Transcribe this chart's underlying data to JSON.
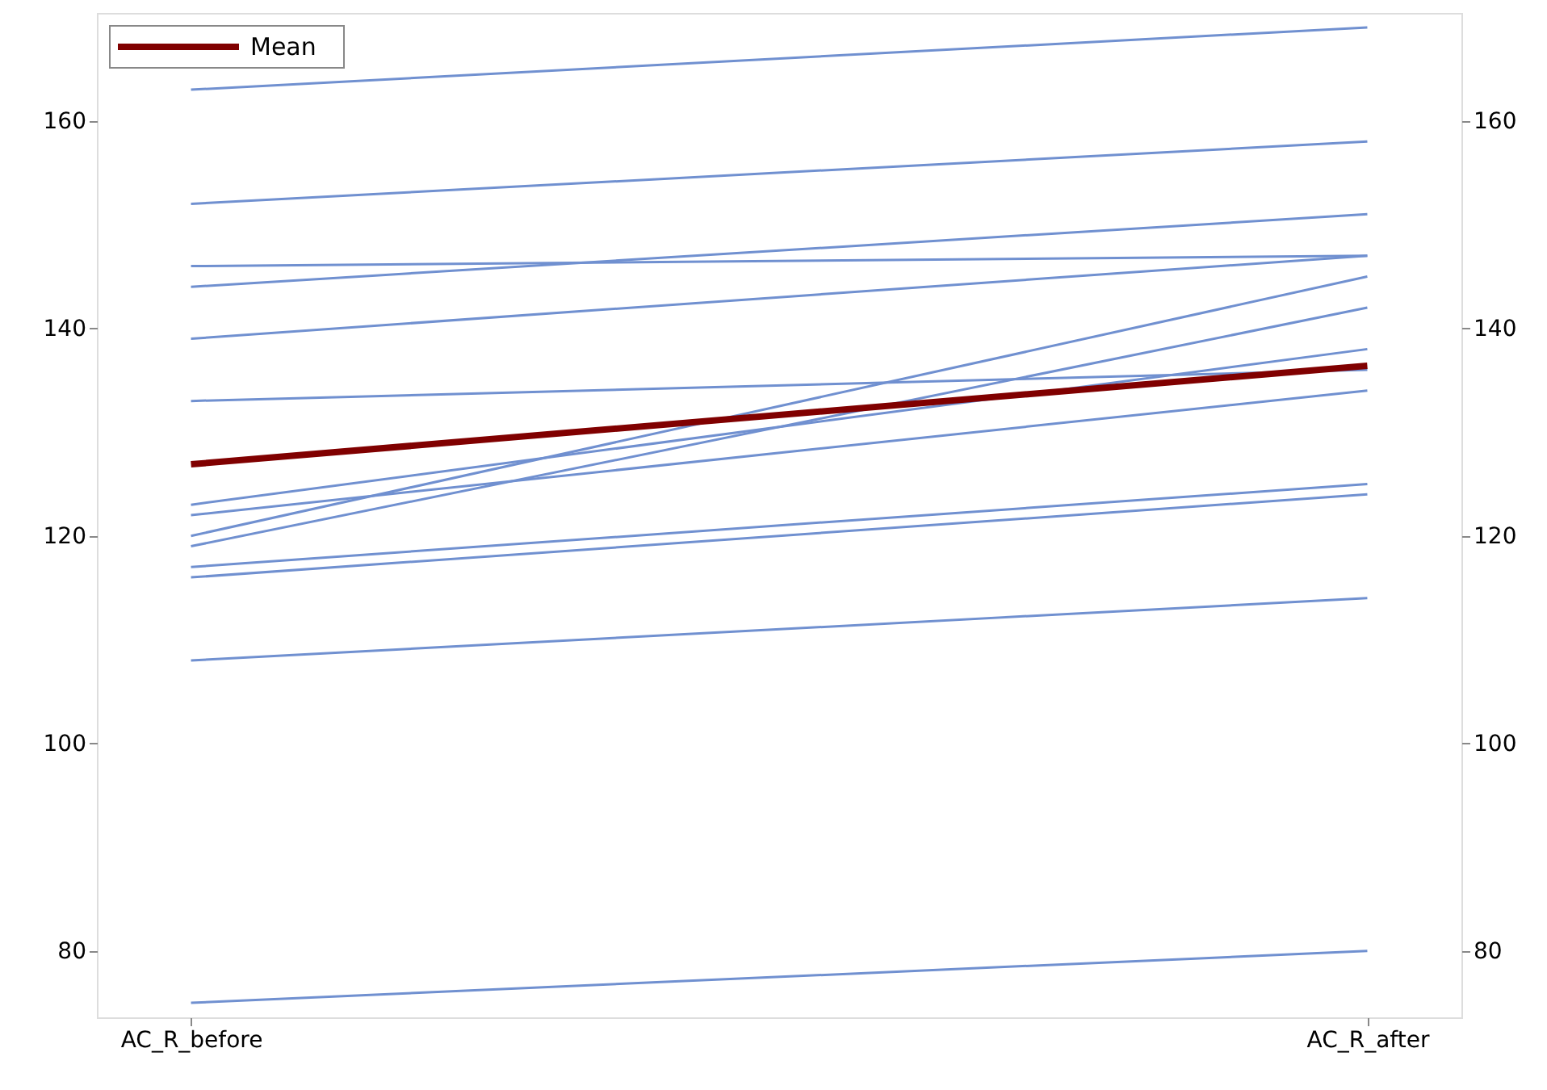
{
  "chart_data": {
    "type": "line",
    "categories": [
      "AC_R_before",
      "AC_R_after"
    ],
    "ylim": [
      73.6,
      170.4
    ],
    "yticks": [
      80,
      100,
      120,
      140,
      160
    ],
    "y2lim": [
      73.6,
      170.4
    ],
    "y2ticks": [
      80,
      100,
      120,
      140,
      160
    ],
    "grid": false,
    "legend": "top left",
    "marker": "none",
    "line_style": "solid",
    "series": [
      {
        "color": "#7090d0",
        "values": [
          163,
          169
        ]
      },
      {
        "color": "#7090d0",
        "values": [
          152,
          158
        ]
      },
      {
        "color": "#7090d0",
        "values": [
          146,
          147
        ]
      },
      {
        "color": "#7090d0",
        "values": [
          144,
          151
        ]
      },
      {
        "color": "#7090d0",
        "values": [
          139,
          147
        ]
      },
      {
        "color": "#7090d0",
        "values": [
          133,
          136
        ]
      },
      {
        "color": "#7090d0",
        "values": [
          123,
          138
        ]
      },
      {
        "color": "#7090d0",
        "values": [
          122,
          134
        ]
      },
      {
        "color": "#7090d0",
        "values": [
          120,
          145
        ]
      },
      {
        "color": "#7090d0",
        "values": [
          119,
          142
        ]
      },
      {
        "color": "#7090d0",
        "values": [
          117,
          125
        ]
      },
      {
        "color": "#7090d0",
        "values": [
          116,
          124
        ]
      },
      {
        "color": "#7090d0",
        "values": [
          108,
          114
        ]
      },
      {
        "color": "#7090d0",
        "values": [
          75,
          80
        ]
      },
      {
        "name": "Mean",
        "color": "#800000",
        "values": [
          126.9,
          136.4
        ]
      }
    ]
  }
}
